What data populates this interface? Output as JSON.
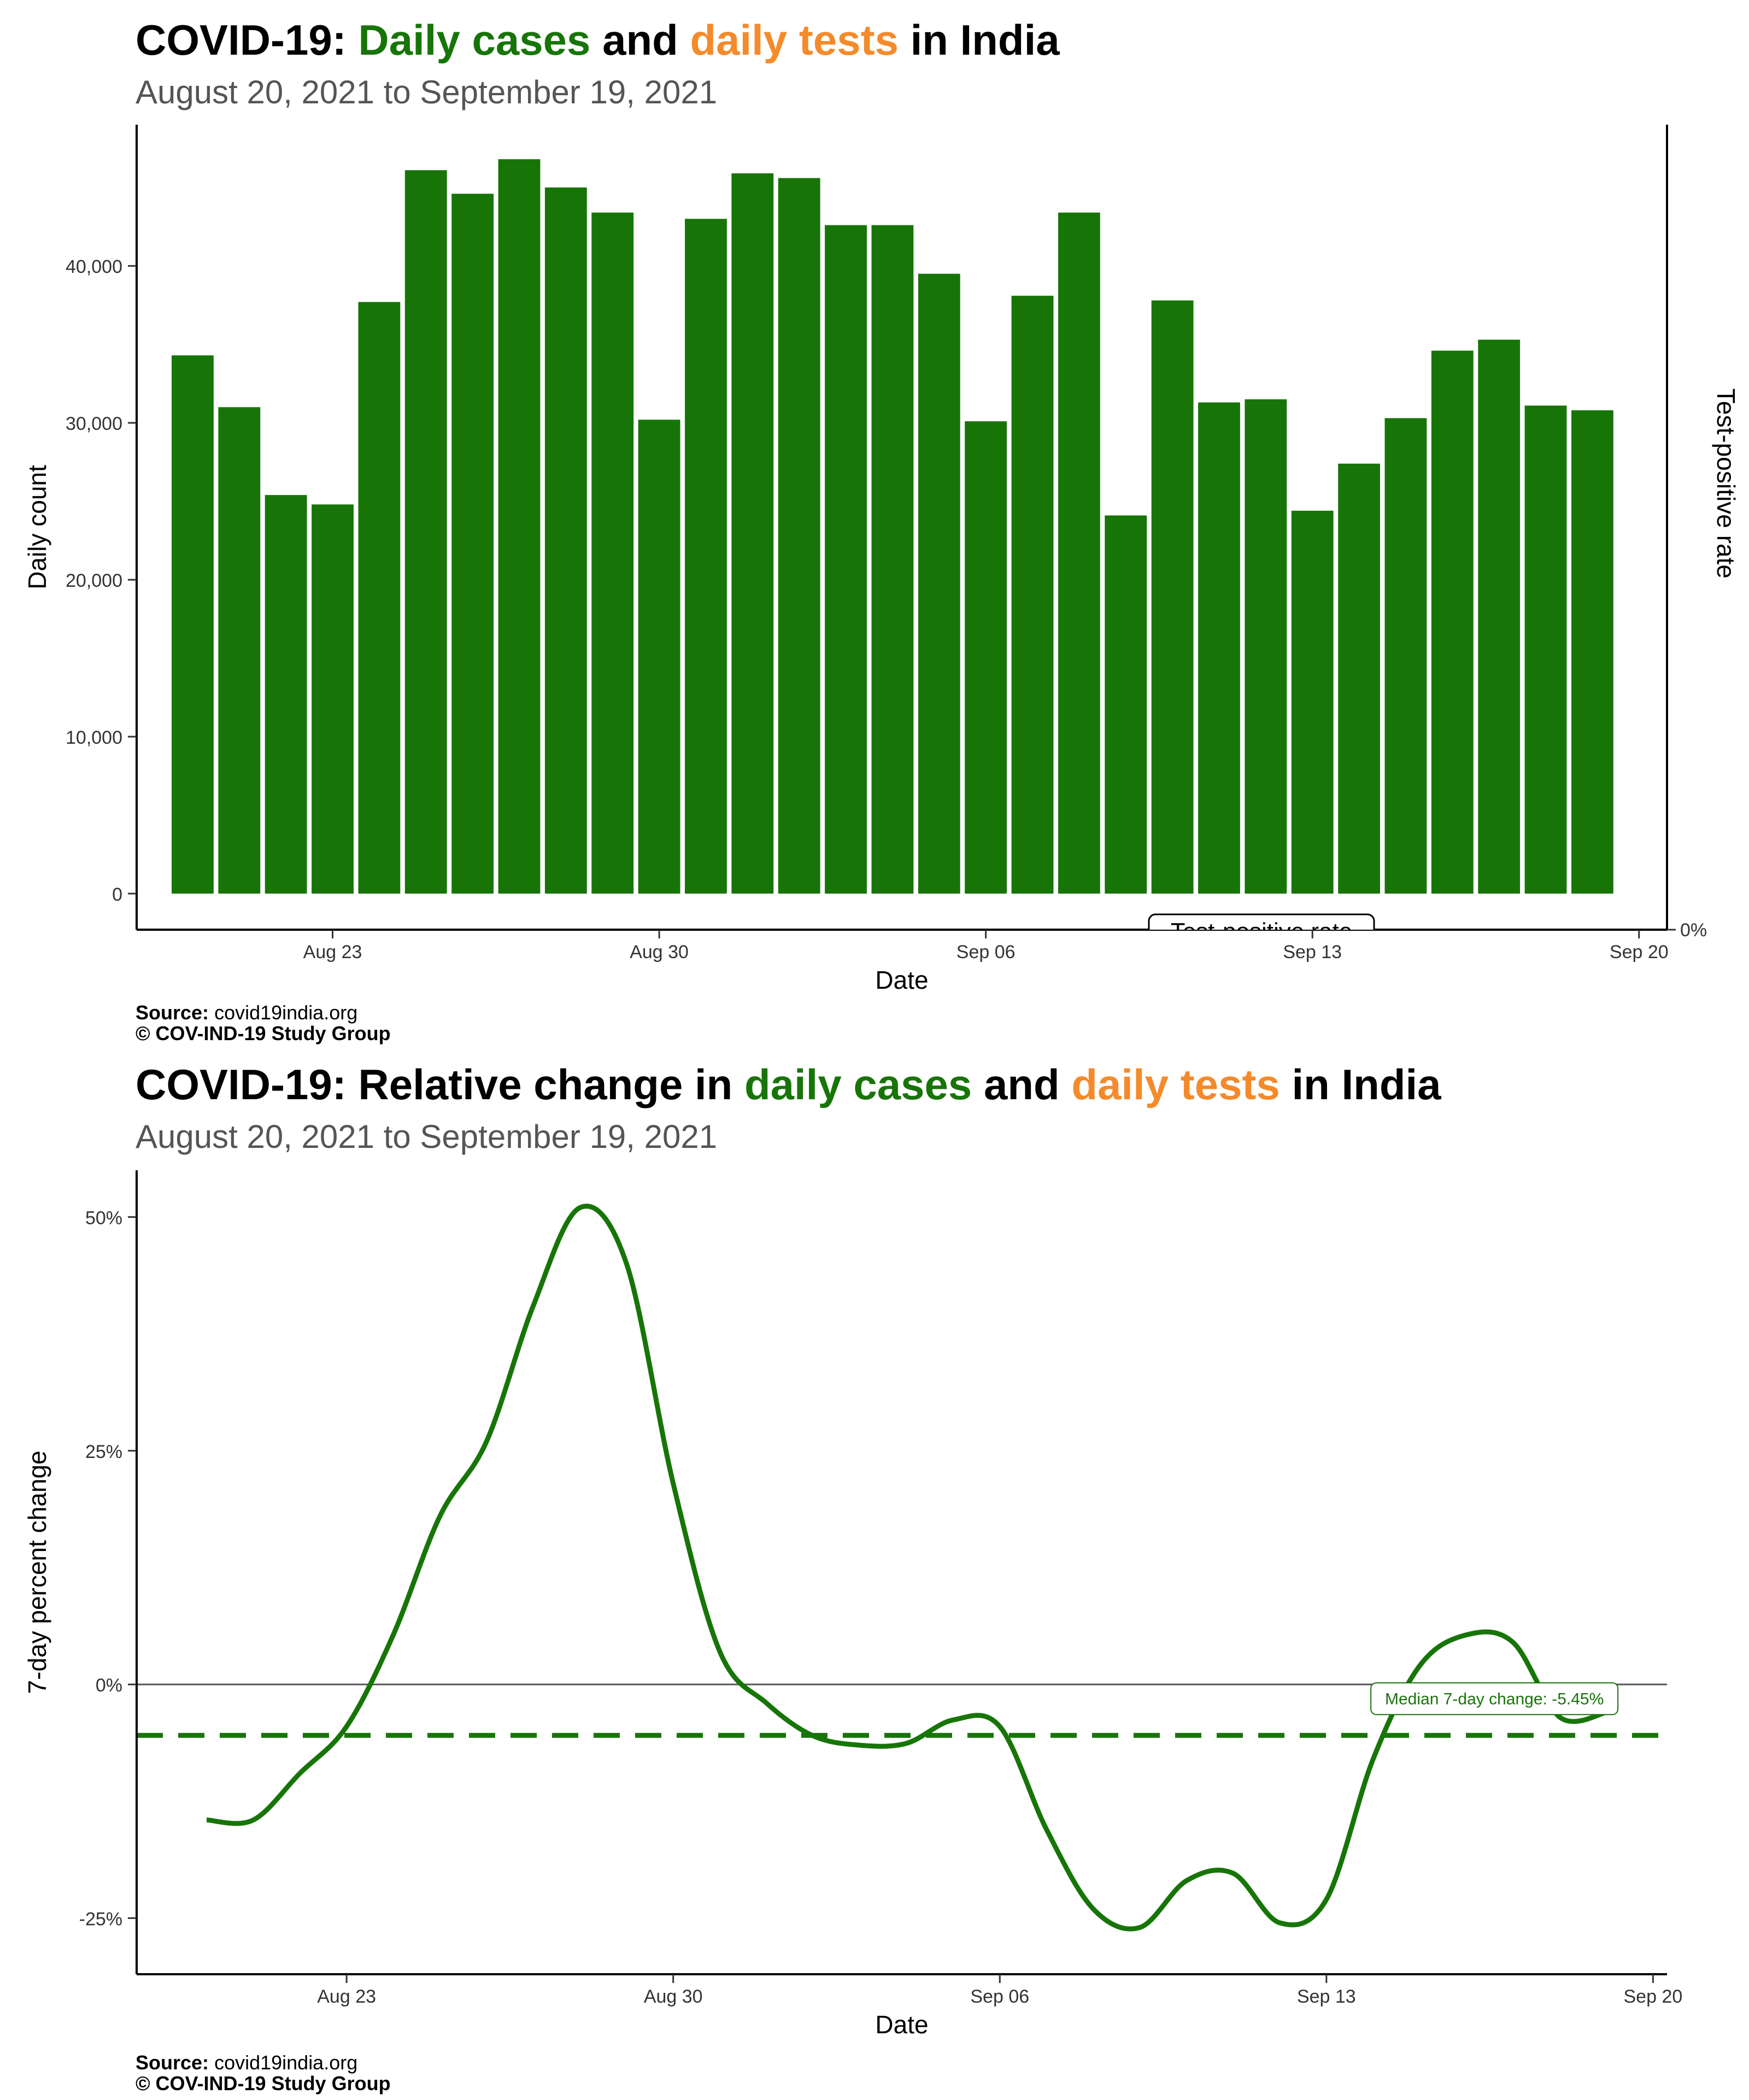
{
  "colors": {
    "cases": "#177508",
    "tests": "#F58A2A",
    "subtitle": "#555555"
  },
  "charts": [
    {
      "title": {
        "prefix": "COVID-19: ",
        "cases": "Daily cases",
        "mid": " and ",
        "tests": "daily tests",
        "suffix": " in India"
      },
      "subtitle": "August 20, 2021 to September 19, 2021",
      "source_label": "Source:",
      "source_value": "covid19india.org",
      "copyright": "© COV-IND-19 Study Group",
      "tpr_legend": "Test-positive rate"
    },
    {
      "title": {
        "prefix": "COVID-19: Relative change in ",
        "cases": "daily cases",
        "mid": " and ",
        "tests": "daily tests",
        "suffix": " in India"
      },
      "subtitle": "August 20, 2021 to September 19, 2021",
      "source_label": "Source:",
      "source_value": "covid19india.org",
      "copyright": "© COV-IND-19 Study Group",
      "median_label": "Median 7-day change: -5.45%"
    }
  ],
  "chart_data": [
    {
      "type": "bar",
      "x": [
        "2021-08-20",
        "2021-08-21",
        "2021-08-22",
        "2021-08-23",
        "2021-08-24",
        "2021-08-25",
        "2021-08-26",
        "2021-08-27",
        "2021-08-28",
        "2021-08-29",
        "2021-08-30",
        "2021-08-31",
        "2021-09-01",
        "2021-09-02",
        "2021-09-03",
        "2021-09-04",
        "2021-09-05",
        "2021-09-06",
        "2021-09-07",
        "2021-09-08",
        "2021-09-09",
        "2021-09-10",
        "2021-09-11",
        "2021-09-12",
        "2021-09-13",
        "2021-09-14",
        "2021-09-15",
        "2021-09-16",
        "2021-09-17",
        "2021-09-18",
        "2021-09-19"
      ],
      "values": [
        34300,
        31000,
        25400,
        24800,
        37700,
        46100,
        44600,
        46800,
        45000,
        43400,
        30200,
        43000,
        45900,
        45600,
        42600,
        42600,
        39500,
        30100,
        38100,
        43400,
        24100,
        37800,
        31300,
        31500,
        24400,
        27400,
        30300,
        34600,
        35300,
        31100,
        30800
      ],
      "xlabel": "Date",
      "ylabel": "Daily count",
      "y2label": "Test-positive rate",
      "ylim": [
        -2300,
        49000
      ],
      "yticks": [
        0,
        10000,
        20000,
        30000,
        40000
      ],
      "ytick_labels": [
        "0",
        "10,000",
        "20,000",
        "30,000",
        "40,000"
      ],
      "y2ticks": [
        "0%"
      ],
      "xticks": [
        "2021-08-23",
        "2021-08-30",
        "2021-09-06",
        "2021-09-13",
        "2021-09-20"
      ],
      "xtick_labels": [
        "Aug 23",
        "Aug 30",
        "Sep 06",
        "Sep 13",
        "Sep 20"
      ],
      "grid": false
    },
    {
      "type": "line",
      "x": [
        "2021-08-20",
        "2021-08-21",
        "2021-08-22",
        "2021-08-23",
        "2021-08-24",
        "2021-08-25",
        "2021-08-26",
        "2021-08-27",
        "2021-08-28",
        "2021-08-29",
        "2021-08-30",
        "2021-08-31",
        "2021-09-01",
        "2021-09-02",
        "2021-09-03",
        "2021-09-04",
        "2021-09-05",
        "2021-09-06",
        "2021-09-07",
        "2021-09-08",
        "2021-09-09",
        "2021-09-10",
        "2021-09-11",
        "2021-09-12",
        "2021-09-13",
        "2021-09-14",
        "2021-09-15",
        "2021-09-16",
        "2021-09-17",
        "2021-09-18",
        "2021-09-19"
      ],
      "values": [
        -14.5,
        -14.5,
        -9.5,
        -4.5,
        5.3,
        18.0,
        26.0,
        40.5,
        51.0,
        45.0,
        21.5,
        3.5,
        -2.0,
        -5.5,
        -6.5,
        -6.3,
        -3.8,
        -4.5,
        -15.5,
        -24.0,
        -26.0,
        -21.0,
        -20.2,
        -25.5,
        -23.0,
        -8.0,
        2.0,
        5.3,
        4.5,
        -3.5,
        -3.0
      ],
      "median": -5.45,
      "xlabel": "Date",
      "ylabel": "7-day percent change",
      "ylim": [
        -31,
        55
      ],
      "yticks": [
        -25,
        0,
        25,
        50
      ],
      "ytick_labels": [
        "-25%",
        "0%",
        "25%",
        "50%"
      ],
      "xticks": [
        "2021-08-23",
        "2021-08-30",
        "2021-09-06",
        "2021-09-13",
        "2021-09-20"
      ],
      "xtick_labels": [
        "Aug 23",
        "Aug 30",
        "Sep 06",
        "Sep 13",
        "Sep 20"
      ],
      "grid": false
    }
  ]
}
